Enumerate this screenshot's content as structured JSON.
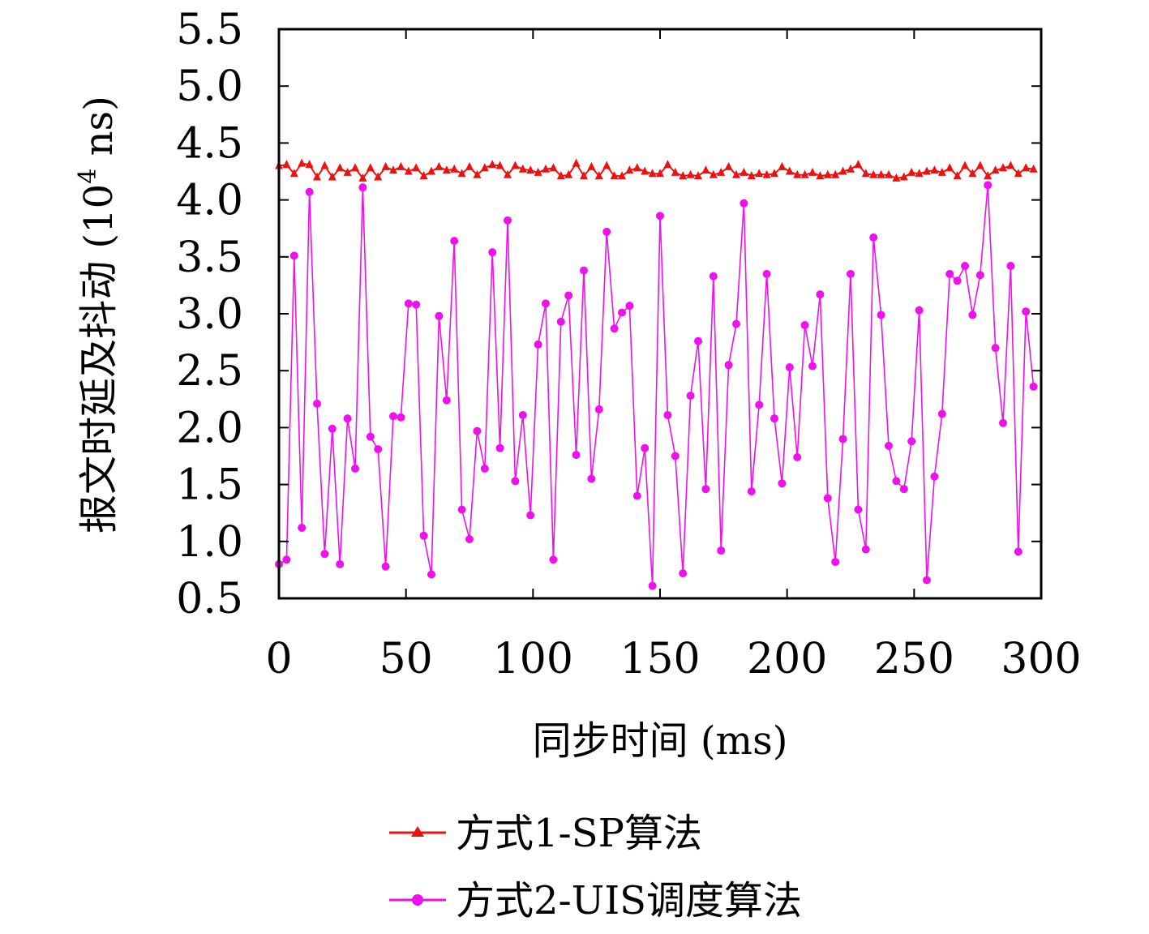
{
  "chart_data": {
    "type": "line",
    "title": "",
    "xlabel": "同步时间 (ms)",
    "ylabel_main": "报文时延及抖动 (10",
    "ylabel_sup": "4",
    "ylabel_tail": " ns)",
    "xlim": [
      0,
      300
    ],
    "ylim": [
      0.5,
      5.5
    ],
    "x_ticks": [
      "0",
      "50",
      "100",
      "150",
      "200",
      "250",
      "300"
    ],
    "y_ticks": [
      "0.5",
      "1.0",
      "1.5",
      "2.0",
      "2.5",
      "3.0",
      "3.5",
      "4.0",
      "4.5",
      "5.0",
      "5.5"
    ],
    "grid": false,
    "legend_position": "bottom",
    "series": [
      {
        "name": "方式1-SP算法",
        "color": "#ee1111",
        "marker": "triangle",
        "x": [
          0,
          3,
          6,
          9,
          12,
          15,
          18,
          21,
          24,
          27,
          30,
          33,
          36,
          39,
          42,
          45,
          48,
          51,
          54,
          57,
          60,
          63,
          66,
          69,
          72,
          75,
          78,
          81,
          84,
          87,
          90,
          93,
          96,
          99,
          102,
          105,
          108,
          111,
          114,
          117,
          120,
          123,
          126,
          129,
          132,
          135,
          138,
          141,
          144,
          147,
          150,
          153,
          156,
          159,
          162,
          165,
          168,
          171,
          174,
          177,
          180,
          183,
          186,
          189,
          192,
          195,
          198,
          201,
          204,
          207,
          210,
          213,
          216,
          219,
          222,
          225,
          228,
          231,
          234,
          237,
          240,
          243,
          246,
          249,
          252,
          255,
          258,
          261,
          264,
          267,
          270,
          273,
          276,
          279,
          282,
          285,
          288,
          291,
          294,
          297
        ],
        "y": [
          4.3,
          4.31,
          4.23,
          4.32,
          4.31,
          4.2,
          4.3,
          4.2,
          4.28,
          4.24,
          4.28,
          4.19,
          4.28,
          4.2,
          4.29,
          4.26,
          4.29,
          4.25,
          4.28,
          4.21,
          4.25,
          4.29,
          4.26,
          4.27,
          4.23,
          4.29,
          4.22,
          4.28,
          4.31,
          4.3,
          4.22,
          4.3,
          4.27,
          4.26,
          4.24,
          4.27,
          4.28,
          4.21,
          4.22,
          4.32,
          4.21,
          4.29,
          4.21,
          4.3,
          4.21,
          4.21,
          4.26,
          4.28,
          4.25,
          4.23,
          4.23,
          4.31,
          4.24,
          4.21,
          4.22,
          4.21,
          4.26,
          4.22,
          4.24,
          4.29,
          4.22,
          4.24,
          4.21,
          4.23,
          4.22,
          4.23,
          4.29,
          4.25,
          4.22,
          4.22,
          4.24,
          4.21,
          4.22,
          4.22,
          4.25,
          4.27,
          4.31,
          4.23,
          4.22,
          4.22,
          4.22,
          4.19,
          4.2,
          4.24,
          4.23,
          4.25,
          4.26,
          4.24,
          4.28,
          4.21,
          4.3,
          4.23,
          4.3,
          4.21,
          4.26,
          4.28,
          4.3,
          4.23,
          4.28,
          4.27
        ]
      },
      {
        "name": "方式2-UIS调度算法",
        "color": "#ee11ee",
        "marker": "circle",
        "x": [
          0,
          3,
          6,
          9,
          12,
          15,
          18,
          21,
          24,
          27,
          30,
          33,
          36,
          39,
          42,
          45,
          48,
          51,
          54,
          57,
          60,
          63,
          66,
          69,
          72,
          75,
          78,
          81,
          84,
          87,
          90,
          93,
          96,
          99,
          102,
          105,
          108,
          111,
          114,
          117,
          120,
          123,
          126,
          129,
          132,
          135,
          138,
          141,
          144,
          147,
          150,
          153,
          156,
          159,
          162,
          165,
          168,
          171,
          174,
          177,
          180,
          183,
          186,
          189,
          192,
          195,
          198,
          201,
          204,
          207,
          210,
          213,
          216,
          219,
          222,
          225,
          228,
          231,
          234,
          237,
          240,
          243,
          246,
          249,
          252,
          255,
          258,
          261,
          264,
          267,
          270,
          273,
          276,
          279,
          282,
          285,
          288,
          291,
          294,
          297
        ],
        "y": [
          0.8,
          0.84,
          3.51,
          1.12,
          4.07,
          2.21,
          0.89,
          1.99,
          0.8,
          2.08,
          1.64,
          4.11,
          1.92,
          1.81,
          0.78,
          2.1,
          2.09,
          3.09,
          3.08,
          1.05,
          0.71,
          2.98,
          2.24,
          3.64,
          1.28,
          1.02,
          1.97,
          1.64,
          3.54,
          1.82,
          3.82,
          1.53,
          2.11,
          1.23,
          2.73,
          3.09,
          0.84,
          2.93,
          3.16,
          1.76,
          3.38,
          1.55,
          2.16,
          3.72,
          2.87,
          3.01,
          3.07,
          1.4,
          1.82,
          0.61,
          3.86,
          2.11,
          1.75,
          0.72,
          2.28,
          2.76,
          1.46,
          3.33,
          0.92,
          2.55,
          2.91,
          3.97,
          1.44,
          2.2,
          3.35,
          2.08,
          1.51,
          2.53,
          1.74,
          2.9,
          2.54,
          3.17,
          1.38,
          0.82,
          1.9,
          3.35,
          1.28,
          0.93,
          3.67,
          2.99,
          1.84,
          1.53,
          1.46,
          1.88,
          3.03,
          0.66,
          1.57,
          2.12,
          3.35,
          3.29,
          3.42,
          2.99,
          3.34,
          4.13,
          2.7,
          2.04,
          3.42,
          0.91,
          3.02,
          2.36
        ]
      }
    ]
  }
}
